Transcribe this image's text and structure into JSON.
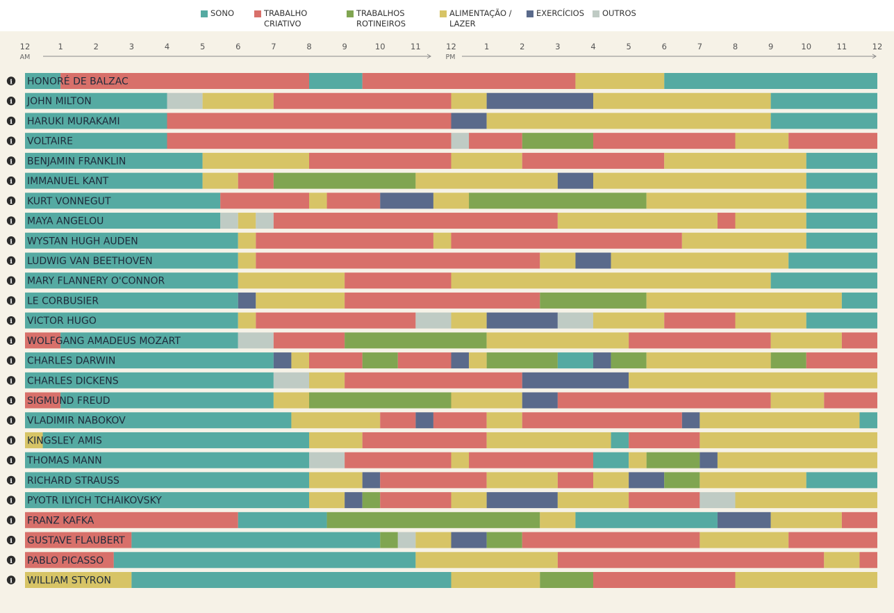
{
  "legend": [
    {
      "key": "S",
      "label": "SONO",
      "color": "#55aaa2"
    },
    {
      "key": "C",
      "label": "TRABALHO\nCRIATIVO",
      "color": "#d8706a"
    },
    {
      "key": "R",
      "label": "TRABALHOS\nROTINEIROS",
      "color": "#80a551"
    },
    {
      "key": "F",
      "label": "ALIMENTAÇÃO /\nLAZER",
      "color": "#d7c466"
    },
    {
      "key": "E",
      "label": "EXERCÍCIOS",
      "color": "#5a6a8b"
    },
    {
      "key": "O",
      "label": "OUTROS",
      "color": "#bfcbc4"
    }
  ],
  "axis": {
    "ticks": [
      "12",
      "1",
      "2",
      "3",
      "4",
      "5",
      "6",
      "7",
      "8",
      "9",
      "10",
      "11",
      "12",
      "1",
      "2",
      "3",
      "4",
      "5",
      "6",
      "7",
      "8",
      "9",
      "10",
      "11",
      "12"
    ],
    "am_label": "AM",
    "pm_label": "PM"
  },
  "chart_data": {
    "type": "timeline",
    "x_unit": "hour of day",
    "xlim": [
      0,
      24
    ],
    "categories": {
      "S": "SONO",
      "C": "TRABALHO CRIATIVO",
      "R": "TRABALHOS ROTINEIROS",
      "F": "ALIMENTAÇÃO / LAZER",
      "E": "EXERCÍCIOS",
      "O": "OUTROS"
    },
    "rows": [
      {
        "name": "HONORÉ DE BALZAC",
        "segments": [
          [
            0,
            1,
            "S"
          ],
          [
            1,
            8,
            "C"
          ],
          [
            8,
            9.5,
            "S"
          ],
          [
            9.5,
            15.5,
            "C"
          ],
          [
            15.5,
            18,
            "F"
          ],
          [
            18,
            24,
            "S"
          ]
        ]
      },
      {
        "name": "JOHN MILTON",
        "segments": [
          [
            0,
            4,
            "S"
          ],
          [
            4,
            5,
            "O"
          ],
          [
            5,
            7,
            "F"
          ],
          [
            7,
            12,
            "C"
          ],
          [
            12,
            13,
            "F"
          ],
          [
            13,
            16,
            "E"
          ],
          [
            16,
            21,
            "F"
          ],
          [
            21,
            24,
            "S"
          ]
        ]
      },
      {
        "name": "HARUKI MURAKAMI",
        "segments": [
          [
            0,
            4,
            "S"
          ],
          [
            4,
            12,
            "C"
          ],
          [
            12,
            13,
            "E"
          ],
          [
            13,
            21,
            "F"
          ],
          [
            21,
            24,
            "S"
          ]
        ]
      },
      {
        "name": "VOLTAIRE",
        "segments": [
          [
            0,
            4,
            "S"
          ],
          [
            4,
            12,
            "C"
          ],
          [
            12,
            12.5,
            "O"
          ],
          [
            12.5,
            14,
            "C"
          ],
          [
            14,
            16,
            "R"
          ],
          [
            16,
            20,
            "C"
          ],
          [
            20,
            21.5,
            "F"
          ],
          [
            21.5,
            24,
            "C"
          ]
        ]
      },
      {
        "name": "BENJAMIN FRANKLIN",
        "segments": [
          [
            0,
            5,
            "S"
          ],
          [
            5,
            8,
            "F"
          ],
          [
            8,
            12,
            "C"
          ],
          [
            12,
            14,
            "F"
          ],
          [
            14,
            18,
            "C"
          ],
          [
            18,
            22,
            "F"
          ],
          [
            22,
            24,
            "S"
          ]
        ]
      },
      {
        "name": "IMMANUEL KANT",
        "segments": [
          [
            0,
            5,
            "S"
          ],
          [
            5,
            6,
            "F"
          ],
          [
            6,
            7,
            "C"
          ],
          [
            7,
            11,
            "R"
          ],
          [
            11,
            15,
            "F"
          ],
          [
            15,
            16,
            "E"
          ],
          [
            16,
            22,
            "F"
          ],
          [
            22,
            24,
            "S"
          ]
        ]
      },
      {
        "name": "KURT VONNEGUT",
        "segments": [
          [
            0,
            5.5,
            "S"
          ],
          [
            5.5,
            8,
            "C"
          ],
          [
            8,
            8.5,
            "F"
          ],
          [
            8.5,
            10,
            "C"
          ],
          [
            10,
            11.5,
            "E"
          ],
          [
            11.5,
            12.5,
            "F"
          ],
          [
            12.5,
            17.5,
            "R"
          ],
          [
            17.5,
            22,
            "F"
          ],
          [
            22,
            24,
            "S"
          ]
        ]
      },
      {
        "name": "MAYA ANGELOU",
        "segments": [
          [
            0,
            5.5,
            "S"
          ],
          [
            5.5,
            6,
            "O"
          ],
          [
            6,
            6.5,
            "F"
          ],
          [
            6.5,
            7,
            "O"
          ],
          [
            7,
            15,
            "C"
          ],
          [
            15,
            19.5,
            "F"
          ],
          [
            19.5,
            20,
            "C"
          ],
          [
            20,
            22,
            "F"
          ],
          [
            22,
            24,
            "S"
          ]
        ]
      },
      {
        "name": "WYSTAN HUGH AUDEN",
        "segments": [
          [
            0,
            6,
            "S"
          ],
          [
            6,
            6.5,
            "F"
          ],
          [
            6.5,
            11.5,
            "C"
          ],
          [
            11.5,
            12,
            "F"
          ],
          [
            12,
            18.5,
            "C"
          ],
          [
            18.5,
            22,
            "F"
          ],
          [
            22,
            24,
            "S"
          ]
        ]
      },
      {
        "name": "LUDWIG VAN BEETHOVEN",
        "segments": [
          [
            0,
            6,
            "S"
          ],
          [
            6,
            6.5,
            "F"
          ],
          [
            6.5,
            14.5,
            "C"
          ],
          [
            14.5,
            15.5,
            "F"
          ],
          [
            15.5,
            16.5,
            "E"
          ],
          [
            16.5,
            21.5,
            "F"
          ],
          [
            21.5,
            24,
            "S"
          ]
        ]
      },
      {
        "name": "MARY FLANNERY O'CONNOR",
        "segments": [
          [
            0,
            6,
            "S"
          ],
          [
            6,
            9,
            "F"
          ],
          [
            9,
            12,
            "C"
          ],
          [
            12,
            21,
            "F"
          ],
          [
            21,
            24,
            "S"
          ]
        ]
      },
      {
        "name": "LE CORBUSIER",
        "segments": [
          [
            0,
            6,
            "S"
          ],
          [
            6,
            6.5,
            "E"
          ],
          [
            6.5,
            9,
            "F"
          ],
          [
            9,
            14.5,
            "C"
          ],
          [
            14.5,
            17.5,
            "R"
          ],
          [
            17.5,
            23,
            "F"
          ],
          [
            23,
            24,
            "S"
          ]
        ]
      },
      {
        "name": "VICTOR HUGO",
        "segments": [
          [
            0,
            6,
            "S"
          ],
          [
            6,
            6.5,
            "F"
          ],
          [
            6.5,
            11,
            "C"
          ],
          [
            11,
            12,
            "O"
          ],
          [
            12,
            13,
            "F"
          ],
          [
            13,
            15,
            "E"
          ],
          [
            15,
            16,
            "O"
          ],
          [
            16,
            18,
            "F"
          ],
          [
            18,
            20,
            "C"
          ],
          [
            20,
            22,
            "F"
          ],
          [
            22,
            24,
            "S"
          ]
        ]
      },
      {
        "name": "WOLFGANG AMADEUS MOZART",
        "segments": [
          [
            0,
            1,
            "C"
          ],
          [
            1,
            6,
            "S"
          ],
          [
            6,
            7,
            "O"
          ],
          [
            7,
            9,
            "C"
          ],
          [
            9,
            13,
            "R"
          ],
          [
            13,
            17,
            "F"
          ],
          [
            17,
            21,
            "C"
          ],
          [
            21,
            23,
            "F"
          ],
          [
            23,
            24,
            "C"
          ]
        ]
      },
      {
        "name": "CHARLES DARWIN",
        "segments": [
          [
            0,
            7,
            "S"
          ],
          [
            7,
            7.5,
            "E"
          ],
          [
            7.5,
            8,
            "F"
          ],
          [
            8,
            9.5,
            "C"
          ],
          [
            9.5,
            10.5,
            "R"
          ],
          [
            10.5,
            12,
            "C"
          ],
          [
            12,
            12.5,
            "E"
          ],
          [
            12.5,
            13,
            "F"
          ],
          [
            13,
            15,
            "R"
          ],
          [
            15,
            16,
            "S"
          ],
          [
            16,
            16.5,
            "E"
          ],
          [
            16.5,
            17.5,
            "R"
          ],
          [
            17.5,
            21,
            "F"
          ],
          [
            21,
            22,
            "R"
          ],
          [
            22,
            24,
            "C"
          ]
        ]
      },
      {
        "name": "CHARLES DICKENS",
        "segments": [
          [
            0,
            7,
            "S"
          ],
          [
            7,
            8,
            "O"
          ],
          [
            8,
            9,
            "F"
          ],
          [
            9,
            14,
            "C"
          ],
          [
            14,
            17,
            "E"
          ],
          [
            17,
            24,
            "F"
          ]
        ]
      },
      {
        "name": "SIGMUND FREUD",
        "segments": [
          [
            0,
            1,
            "C"
          ],
          [
            1,
            7,
            "S"
          ],
          [
            7,
            8,
            "F"
          ],
          [
            8,
            12,
            "R"
          ],
          [
            12,
            14,
            "F"
          ],
          [
            14,
            15,
            "E"
          ],
          [
            15,
            21,
            "C"
          ],
          [
            21,
            22.5,
            "F"
          ],
          [
            22.5,
            24,
            "C"
          ]
        ]
      },
      {
        "name": "VLADIMIR NABOKOV",
        "segments": [
          [
            0,
            7.5,
            "S"
          ],
          [
            7.5,
            10,
            "F"
          ],
          [
            10,
            11,
            "C"
          ],
          [
            11,
            11.5,
            "E"
          ],
          [
            11.5,
            13,
            "C"
          ],
          [
            13,
            14,
            "F"
          ],
          [
            14,
            18.5,
            "C"
          ],
          [
            18.5,
            19,
            "E"
          ],
          [
            19,
            23.5,
            "F"
          ],
          [
            23.5,
            24,
            "S"
          ]
        ]
      },
      {
        "name": "KINGSLEY AMIS",
        "segments": [
          [
            0,
            0.5,
            "F"
          ],
          [
            0.5,
            8,
            "S"
          ],
          [
            8,
            9.5,
            "F"
          ],
          [
            9.5,
            13,
            "C"
          ],
          [
            13,
            16.5,
            "F"
          ],
          [
            16.5,
            17,
            "S"
          ],
          [
            17,
            19,
            "C"
          ],
          [
            19,
            24,
            "F"
          ]
        ]
      },
      {
        "name": "THOMAS MANN",
        "segments": [
          [
            0,
            8,
            "S"
          ],
          [
            8,
            9,
            "O"
          ],
          [
            9,
            12,
            "C"
          ],
          [
            12,
            12.5,
            "F"
          ],
          [
            12.5,
            16,
            "C"
          ],
          [
            16,
            17,
            "S"
          ],
          [
            17,
            17.5,
            "F"
          ],
          [
            17.5,
            19,
            "R"
          ],
          [
            19,
            19.5,
            "E"
          ],
          [
            19.5,
            24,
            "F"
          ]
        ]
      },
      {
        "name": "RICHARD STRAUSS",
        "segments": [
          [
            0,
            8,
            "S"
          ],
          [
            8,
            9.5,
            "F"
          ],
          [
            9.5,
            10,
            "E"
          ],
          [
            10,
            13,
            "C"
          ],
          [
            13,
            15,
            "F"
          ],
          [
            15,
            16,
            "C"
          ],
          [
            16,
            17,
            "F"
          ],
          [
            17,
            18,
            "E"
          ],
          [
            18,
            19,
            "R"
          ],
          [
            19,
            22,
            "F"
          ],
          [
            22,
            24,
            "S"
          ]
        ]
      },
      {
        "name": "PYOTR ILYICH TCHAIKOVSKY",
        "segments": [
          [
            0,
            8,
            "S"
          ],
          [
            8,
            9,
            "F"
          ],
          [
            9,
            9.5,
            "E"
          ],
          [
            9.5,
            10,
            "R"
          ],
          [
            10,
            12,
            "C"
          ],
          [
            12,
            13,
            "F"
          ],
          [
            13,
            15,
            "E"
          ],
          [
            15,
            17,
            "F"
          ],
          [
            17,
            19,
            "C"
          ],
          [
            19,
            20,
            "O"
          ],
          [
            20,
            24,
            "F"
          ]
        ]
      },
      {
        "name": "FRANZ KAFKA",
        "segments": [
          [
            0,
            6,
            "C"
          ],
          [
            6,
            8.5,
            "S"
          ],
          [
            8.5,
            14.5,
            "R"
          ],
          [
            14.5,
            15.5,
            "F"
          ],
          [
            15.5,
            19.5,
            "S"
          ],
          [
            19.5,
            21,
            "E"
          ],
          [
            21,
            23,
            "F"
          ],
          [
            23,
            24,
            "C"
          ]
        ]
      },
      {
        "name": "GUSTAVE FLAUBERT",
        "segments": [
          [
            0,
            3,
            "C"
          ],
          [
            3,
            10,
            "S"
          ],
          [
            10,
            10.5,
            "R"
          ],
          [
            10.5,
            11,
            "O"
          ],
          [
            11,
            12,
            "F"
          ],
          [
            12,
            13,
            "E"
          ],
          [
            13,
            14,
            "R"
          ],
          [
            14,
            19,
            "C"
          ],
          [
            19,
            21.5,
            "F"
          ],
          [
            21.5,
            24,
            "C"
          ]
        ]
      },
      {
        "name": "PABLO PICASSO",
        "segments": [
          [
            0,
            2.5,
            "C"
          ],
          [
            2.5,
            11,
            "S"
          ],
          [
            11,
            15,
            "F"
          ],
          [
            15,
            22.5,
            "C"
          ],
          [
            22.5,
            23.5,
            "F"
          ],
          [
            23.5,
            24,
            "C"
          ]
        ]
      },
      {
        "name": "WILLIAM STYRON",
        "segments": [
          [
            0,
            3,
            "F"
          ],
          [
            3,
            12,
            "S"
          ],
          [
            12,
            14.5,
            "F"
          ],
          [
            14.5,
            16,
            "R"
          ],
          [
            16,
            20,
            "C"
          ],
          [
            20,
            24,
            "F"
          ]
        ]
      }
    ]
  }
}
